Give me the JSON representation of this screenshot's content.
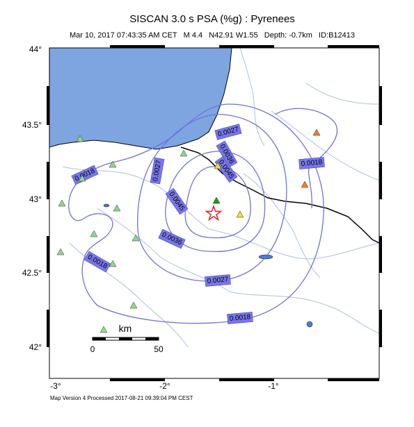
{
  "header": {
    "title": "SISCAN 3.0 s PSA (%g) : Pyrenees",
    "subtitle": "Mar 10, 2017 07:43:35 AM CET   M 4.4   N42.91 W1.55   Depth: -0.7km   ID:B12413"
  },
  "axes": {
    "x_labels": [
      "-3°",
      "-2°",
      "-1°"
    ],
    "y_labels": [
      "44°",
      "43.5°",
      "43°",
      "42.5°",
      "42°"
    ]
  },
  "contour_labels": [
    "0.0027",
    "0.0036",
    "0.0045",
    "0.0018",
    "0.0018",
    "0.0027",
    "0.0045",
    "0.0036",
    "0.0018",
    "0.0027",
    "0.0018"
  ],
  "scale_bar": {
    "unit": "km",
    "start": "0",
    "end": "50"
  },
  "footer": "Map Version 4 Processed 2017-08-21 09:39:04 PM CEST"
}
